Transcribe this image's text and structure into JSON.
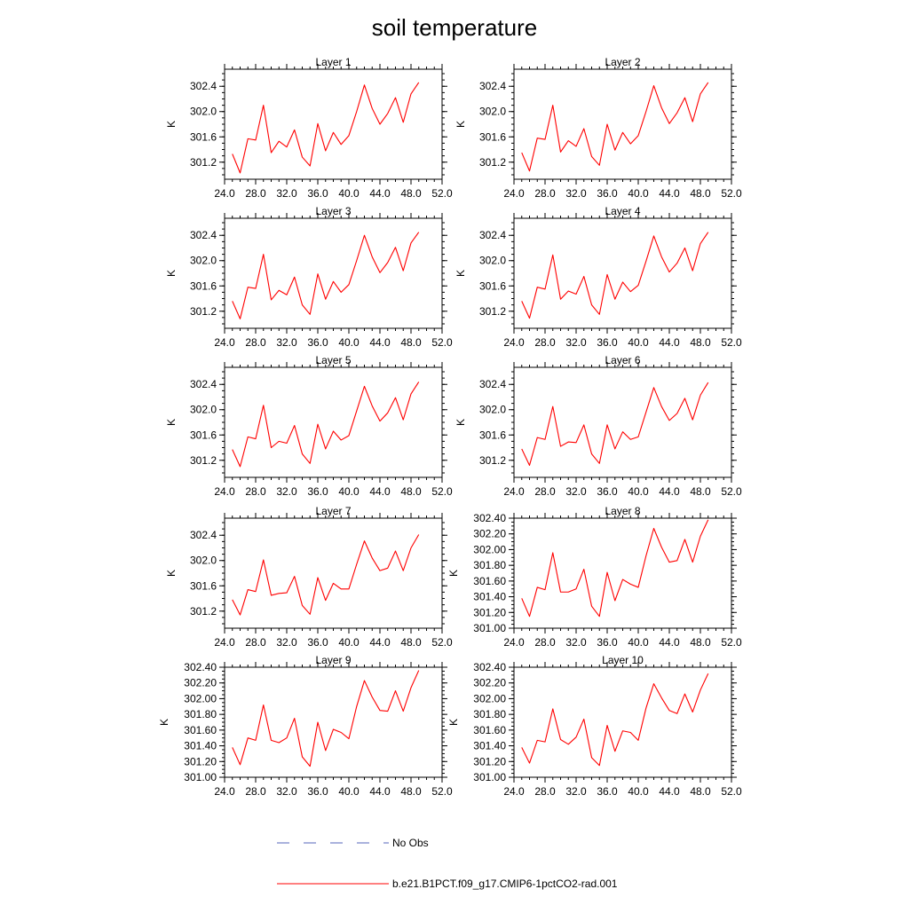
{
  "figure": {
    "title": "soil temperature",
    "legend": {
      "entries": [
        {
          "name": "No Obs",
          "color": "#5566bb",
          "style": "dashed"
        },
        {
          "name": "b.e21.B1PCT.f09_g17.CMIP6-1pctCO2-rad.001",
          "color": "#ff0000",
          "style": "solid"
        }
      ]
    }
  },
  "chart_data": [
    {
      "type": "line",
      "title": "Layer 1",
      "ylabel": "K",
      "xlim": [
        24,
        52
      ],
      "ylim": [
        300.93,
        302.67
      ],
      "xticks": [
        "24.0",
        "28.0",
        "32.0",
        "36.0",
        "40.0",
        "44.0",
        "48.0",
        "52.0"
      ],
      "yticks": [
        "301.2",
        "301.6",
        "302.0",
        "302.4"
      ],
      "x": [
        25,
        26,
        27,
        28,
        29,
        30,
        31,
        32,
        33,
        34,
        35,
        36,
        37,
        38,
        39,
        40,
        41,
        42,
        43,
        44,
        45,
        46,
        47,
        48,
        49
      ],
      "series": [
        {
          "name": "b.e21.B1PCT.f09_g17.CMIP6-1pctCO2-rad.001",
          "color": "#ff0000",
          "values": [
            301.33,
            301.03,
            301.57,
            301.55,
            302.1,
            301.35,
            301.53,
            301.44,
            301.71,
            301.28,
            301.14,
            301.81,
            301.38,
            301.67,
            301.48,
            301.62,
            302.0,
            302.42,
            302.05,
            301.8,
            301.97,
            302.22,
            301.83,
            302.28,
            302.46
          ]
        }
      ]
    },
    {
      "type": "line",
      "title": "Layer 2",
      "ylabel": "K",
      "xlim": [
        24,
        52
      ],
      "ylim": [
        300.93,
        302.67
      ],
      "xticks": [
        "24.0",
        "28.0",
        "32.0",
        "36.0",
        "40.0",
        "44.0",
        "48.0",
        "52.0"
      ],
      "yticks": [
        "301.2",
        "301.6",
        "302.0",
        "302.4"
      ],
      "x": [
        25,
        26,
        27,
        28,
        29,
        30,
        31,
        32,
        33,
        34,
        35,
        36,
        37,
        38,
        39,
        40,
        41,
        42,
        43,
        44,
        45,
        46,
        47,
        48,
        49
      ],
      "series": [
        {
          "name": "b.e21.B1PCT.f09_g17.CMIP6-1pctCO2-rad.001",
          "color": "#ff0000",
          "values": [
            301.35,
            301.06,
            301.58,
            301.56,
            302.1,
            301.36,
            301.54,
            301.45,
            301.73,
            301.29,
            301.15,
            301.8,
            301.39,
            301.67,
            301.49,
            301.62,
            302.0,
            302.41,
            302.06,
            301.81,
            301.98,
            302.22,
            301.84,
            302.28,
            302.46
          ]
        }
      ]
    },
    {
      "type": "line",
      "title": "Layer 3",
      "ylabel": "K",
      "xlim": [
        24,
        52
      ],
      "ylim": [
        300.93,
        302.67
      ],
      "xticks": [
        "24.0",
        "28.0",
        "32.0",
        "36.0",
        "40.0",
        "44.0",
        "48.0",
        "52.0"
      ],
      "yticks": [
        "301.2",
        "301.6",
        "302.0",
        "302.4"
      ],
      "x": [
        25,
        26,
        27,
        28,
        29,
        30,
        31,
        32,
        33,
        34,
        35,
        36,
        37,
        38,
        39,
        40,
        41,
        42,
        43,
        44,
        45,
        46,
        47,
        48,
        49
      ],
      "series": [
        {
          "name": "b.e21.B1PCT.f09_g17.CMIP6-1pctCO2-rad.001",
          "color": "#ff0000",
          "values": [
            301.36,
            301.08,
            301.58,
            301.56,
            302.1,
            301.38,
            301.53,
            301.46,
            301.74,
            301.3,
            301.15,
            301.79,
            301.39,
            301.67,
            301.5,
            301.62,
            302.0,
            302.4,
            302.06,
            301.81,
            301.97,
            302.21,
            301.84,
            302.28,
            302.45
          ]
        }
      ]
    },
    {
      "type": "line",
      "title": "Layer 4",
      "ylabel": "K",
      "xlim": [
        24,
        52
      ],
      "ylim": [
        300.93,
        302.67
      ],
      "xticks": [
        "24.0",
        "28.0",
        "32.0",
        "36.0",
        "40.0",
        "44.0",
        "48.0",
        "52.0"
      ],
      "yticks": [
        "301.2",
        "301.6",
        "302.0",
        "302.4"
      ],
      "x": [
        25,
        26,
        27,
        28,
        29,
        30,
        31,
        32,
        33,
        34,
        35,
        36,
        37,
        38,
        39,
        40,
        41,
        42,
        43,
        44,
        45,
        46,
        47,
        48,
        49
      ],
      "series": [
        {
          "name": "b.e21.B1PCT.f09_g17.CMIP6-1pctCO2-rad.001",
          "color": "#ff0000",
          "values": [
            301.36,
            301.09,
            301.58,
            301.55,
            302.09,
            301.39,
            301.52,
            301.47,
            301.75,
            301.3,
            301.15,
            301.78,
            301.39,
            301.66,
            301.51,
            301.61,
            301.99,
            302.39,
            302.06,
            301.82,
            301.96,
            302.2,
            301.84,
            302.27,
            302.45
          ]
        }
      ]
    },
    {
      "type": "line",
      "title": "Layer 5",
      "ylabel": "K",
      "xlim": [
        24,
        52
      ],
      "ylim": [
        300.93,
        302.67
      ],
      "xticks": [
        "24.0",
        "28.0",
        "32.0",
        "36.0",
        "40.0",
        "44.0",
        "48.0",
        "52.0"
      ],
      "yticks": [
        "301.2",
        "301.6",
        "302.0",
        "302.4"
      ],
      "x": [
        25,
        26,
        27,
        28,
        29,
        30,
        31,
        32,
        33,
        34,
        35,
        36,
        37,
        38,
        39,
        40,
        41,
        42,
        43,
        44,
        45,
        46,
        47,
        48,
        49
      ],
      "series": [
        {
          "name": "b.e21.B1PCT.f09_g17.CMIP6-1pctCO2-rad.001",
          "color": "#ff0000",
          "values": [
            301.37,
            301.1,
            301.57,
            301.54,
            302.07,
            301.4,
            301.5,
            301.47,
            301.75,
            301.3,
            301.15,
            301.77,
            301.38,
            301.66,
            301.52,
            301.59,
            301.98,
            302.37,
            302.06,
            301.82,
            301.95,
            302.19,
            301.84,
            302.25,
            302.44
          ]
        }
      ]
    },
    {
      "type": "line",
      "title": "Layer 6",
      "ylabel": "K",
      "xlim": [
        24,
        52
      ],
      "ylim": [
        300.93,
        302.67
      ],
      "xticks": [
        "24.0",
        "28.0",
        "32.0",
        "36.0",
        "40.0",
        "44.0",
        "48.0",
        "52.0"
      ],
      "yticks": [
        "301.2",
        "301.6",
        "302.0",
        "302.4"
      ],
      "x": [
        25,
        26,
        27,
        28,
        29,
        30,
        31,
        32,
        33,
        34,
        35,
        36,
        37,
        38,
        39,
        40,
        41,
        42,
        43,
        44,
        45,
        46,
        47,
        48,
        49
      ],
      "series": [
        {
          "name": "b.e21.B1PCT.f09_g17.CMIP6-1pctCO2-rad.001",
          "color": "#ff0000",
          "values": [
            301.38,
            301.12,
            301.56,
            301.53,
            302.05,
            301.42,
            301.49,
            301.48,
            301.76,
            301.3,
            301.15,
            301.76,
            301.38,
            301.65,
            301.53,
            301.57,
            301.96,
            302.35,
            302.05,
            301.83,
            301.94,
            302.18,
            301.84,
            302.23,
            302.43
          ]
        }
      ]
    },
    {
      "type": "line",
      "title": "Layer 7",
      "ylabel": "K",
      "xlim": [
        24,
        52
      ],
      "ylim": [
        300.93,
        302.67
      ],
      "xticks": [
        "24.0",
        "28.0",
        "32.0",
        "36.0",
        "40.0",
        "44.0",
        "48.0",
        "52.0"
      ],
      "yticks": [
        "301.2",
        "301.6",
        "302.0",
        "302.4"
      ],
      "x": [
        25,
        26,
        27,
        28,
        29,
        30,
        31,
        32,
        33,
        34,
        35,
        36,
        37,
        38,
        39,
        40,
        41,
        42,
        43,
        44,
        45,
        46,
        47,
        48,
        49
      ],
      "series": [
        {
          "name": "b.e21.B1PCT.f09_g17.CMIP6-1pctCO2-rad.001",
          "color": "#ff0000",
          "values": [
            301.38,
            301.14,
            301.54,
            301.51,
            302.01,
            301.45,
            301.48,
            301.49,
            301.75,
            301.29,
            301.15,
            301.73,
            301.37,
            301.64,
            301.55,
            301.55,
            301.94,
            302.31,
            302.04,
            301.84,
            301.88,
            302.15,
            301.84,
            302.2,
            302.41
          ]
        }
      ]
    },
    {
      "type": "line",
      "title": "Layer 8",
      "ylabel": "K",
      "xlim": [
        24,
        52
      ],
      "ylim": [
        301.0,
        302.4
      ],
      "xticks": [
        "24.0",
        "28.0",
        "32.0",
        "36.0",
        "40.0",
        "44.0",
        "48.0",
        "52.0"
      ],
      "yticks": [
        "301.00",
        "301.20",
        "301.40",
        "301.60",
        "301.80",
        "302.00",
        "302.20",
        "302.40"
      ],
      "x": [
        25,
        26,
        27,
        28,
        29,
        30,
        31,
        32,
        33,
        34,
        35,
        36,
        37,
        38,
        39,
        40,
        41,
        42,
        43,
        44,
        45,
        46,
        47,
        48,
        49
      ],
      "series": [
        {
          "name": "b.e21.B1PCT.f09_g17.CMIP6-1pctCO2-rad.001",
          "color": "#ff0000",
          "values": [
            301.38,
            301.15,
            301.52,
            301.49,
            301.96,
            301.46,
            301.46,
            301.5,
            301.75,
            301.28,
            301.15,
            301.71,
            301.35,
            301.62,
            301.56,
            301.52,
            301.92,
            302.27,
            302.03,
            301.84,
            301.86,
            302.13,
            301.84,
            302.17,
            302.38
          ]
        }
      ]
    },
    {
      "type": "line",
      "title": "Layer 9",
      "ylabel": "K",
      "xlim": [
        24,
        52
      ],
      "ylim": [
        301.0,
        302.4
      ],
      "xticks": [
        "24.0",
        "28.0",
        "32.0",
        "36.0",
        "40.0",
        "44.0",
        "48.0",
        "52.0"
      ],
      "yticks": [
        "301.00",
        "301.20",
        "301.40",
        "301.60",
        "301.80",
        "302.00",
        "302.20",
        "302.40"
      ],
      "x": [
        25,
        26,
        27,
        28,
        29,
        30,
        31,
        32,
        33,
        34,
        35,
        36,
        37,
        38,
        39,
        40,
        41,
        42,
        43,
        44,
        45,
        46,
        47,
        48,
        49
      ],
      "series": [
        {
          "name": "b.e21.B1PCT.f09_g17.CMIP6-1pctCO2-rad.001",
          "color": "#ff0000",
          "values": [
            301.38,
            301.16,
            301.5,
            301.47,
            301.92,
            301.47,
            301.44,
            301.5,
            301.75,
            301.26,
            301.14,
            301.7,
            301.34,
            301.61,
            301.57,
            301.49,
            301.9,
            302.23,
            302.02,
            301.85,
            301.84,
            302.1,
            301.84,
            302.14,
            302.36
          ]
        }
      ]
    },
    {
      "type": "line",
      "title": "Layer 10",
      "ylabel": "K",
      "xlim": [
        24,
        52
      ],
      "ylim": [
        301.0,
        302.4
      ],
      "xticks": [
        "24.0",
        "28.0",
        "32.0",
        "36.0",
        "40.0",
        "44.0",
        "48.0",
        "52.0"
      ],
      "yticks": [
        "301.00",
        "301.20",
        "301.40",
        "301.60",
        "301.80",
        "302.00",
        "302.20",
        "302.40"
      ],
      "x": [
        25,
        26,
        27,
        28,
        29,
        30,
        31,
        32,
        33,
        34,
        35,
        36,
        37,
        38,
        39,
        40,
        41,
        42,
        43,
        44,
        45,
        46,
        47,
        48,
        49
      ],
      "series": [
        {
          "name": "b.e21.B1PCT.f09_g17.CMIP6-1pctCO2-rad.001",
          "color": "#ff0000",
          "values": [
            301.38,
            301.18,
            301.47,
            301.45,
            301.87,
            301.48,
            301.42,
            301.51,
            301.74,
            301.25,
            301.15,
            301.66,
            301.33,
            301.59,
            301.57,
            301.47,
            301.88,
            302.19,
            302.01,
            301.85,
            301.81,
            302.06,
            301.83,
            302.11,
            302.32
          ]
        }
      ]
    }
  ]
}
